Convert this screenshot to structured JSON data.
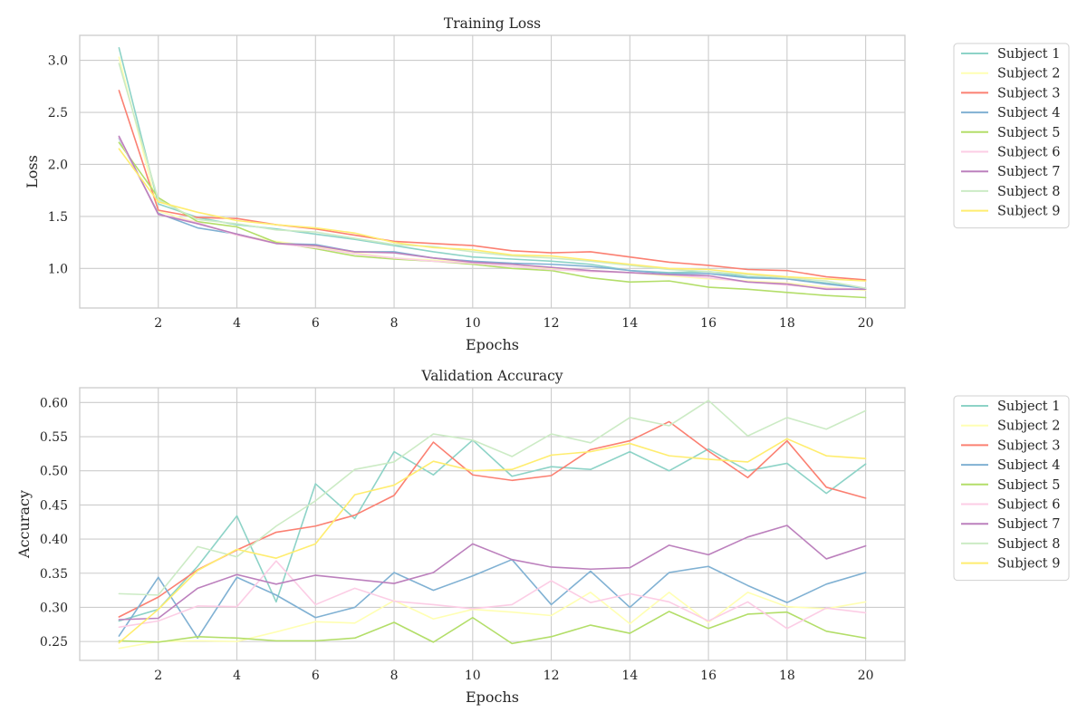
{
  "figure": {
    "xlabel": "Epochs",
    "palette": {
      "Subject 1": "#8dd3c7",
      "Subject 2": "#ffffb3",
      "Subject 3": "#fb8072",
      "Subject 4": "#80b1d3",
      "Subject 5": "#b3de69",
      "Subject 6": "#fccde5",
      "Subject 7": "#bc80bd",
      "Subject 8": "#ccebc5",
      "Subject 9": "#ffed6f"
    }
  },
  "chart_data": [
    {
      "type": "line",
      "title": "Training Loss",
      "xlabel": "Epochs",
      "ylabel": "Loss",
      "x": [
        1,
        2,
        3,
        4,
        5,
        6,
        7,
        8,
        9,
        10,
        11,
        12,
        13,
        14,
        15,
        16,
        17,
        18,
        19,
        20
      ],
      "xlim": [
        0.0,
        21.0
      ],
      "ylim": [
        0.62,
        3.24
      ],
      "xticks": [
        2,
        4,
        6,
        8,
        10,
        12,
        14,
        16,
        18,
        20
      ],
      "yticks": [
        1.0,
        1.5,
        2.0,
        2.5,
        3.0
      ],
      "ytick_labels": [
        "1.0",
        "1.5",
        "2.0",
        "2.5",
        "3.0"
      ],
      "grid": true,
      "legend": "outside-top-right",
      "series": [
        {
          "name": "Subject 1",
          "values": [
            3.12,
            1.62,
            1.49,
            1.42,
            1.38,
            1.33,
            1.28,
            1.22,
            1.16,
            1.11,
            1.09,
            1.07,
            1.04,
            0.98,
            0.96,
            0.97,
            0.92,
            0.9,
            0.86,
            0.81
          ]
        },
        {
          "name": "Subject 2",
          "values": [
            3.03,
            1.55,
            1.44,
            1.32,
            1.26,
            1.21,
            1.15,
            1.1,
            1.08,
            1.06,
            1.04,
            1.0,
            0.98,
            0.96,
            0.93,
            0.9,
            0.88,
            0.86,
            0.82,
            0.79
          ]
        },
        {
          "name": "Subject 3",
          "values": [
            2.71,
            1.56,
            1.49,
            1.48,
            1.42,
            1.38,
            1.32,
            1.26,
            1.24,
            1.22,
            1.17,
            1.15,
            1.16,
            1.11,
            1.06,
            1.03,
            0.99,
            0.98,
            0.92,
            0.89
          ]
        },
        {
          "name": "Subject 4",
          "values": [
            2.25,
            1.53,
            1.39,
            1.33,
            1.24,
            1.23,
            1.16,
            1.16,
            1.1,
            1.07,
            1.05,
            1.04,
            1.02,
            0.98,
            0.95,
            0.95,
            0.91,
            0.9,
            0.85,
            0.81
          ]
        },
        {
          "name": "Subject 5",
          "values": [
            2.21,
            1.68,
            1.45,
            1.4,
            1.25,
            1.19,
            1.12,
            1.09,
            1.07,
            1.04,
            1.0,
            0.98,
            0.91,
            0.87,
            0.88,
            0.82,
            0.8,
            0.77,
            0.74,
            0.72
          ]
        },
        {
          "name": "Subject 6",
          "values": [
            2.26,
            1.52,
            1.44,
            1.32,
            1.24,
            1.2,
            1.14,
            1.1,
            1.07,
            1.05,
            1.02,
            0.99,
            0.97,
            0.96,
            0.94,
            0.91,
            0.87,
            0.84,
            0.81,
            0.8
          ]
        },
        {
          "name": "Subject 7",
          "values": [
            2.27,
            1.52,
            1.43,
            1.33,
            1.24,
            1.22,
            1.16,
            1.15,
            1.1,
            1.06,
            1.04,
            1.01,
            0.98,
            0.96,
            0.94,
            0.93,
            0.87,
            0.85,
            0.8,
            0.8
          ]
        },
        {
          "name": "Subject 8",
          "values": [
            2.97,
            1.66,
            1.47,
            1.43,
            1.37,
            1.35,
            1.29,
            1.23,
            1.21,
            1.16,
            1.12,
            1.1,
            1.07,
            1.03,
            0.99,
            0.97,
            0.94,
            0.91,
            0.88,
            0.81
          ]
        },
        {
          "name": "Subject 9",
          "values": [
            2.15,
            1.64,
            1.54,
            1.46,
            1.42,
            1.39,
            1.34,
            1.25,
            1.2,
            1.18,
            1.13,
            1.12,
            1.08,
            1.04,
            1.0,
            0.99,
            0.95,
            0.92,
            0.9,
            0.88
          ]
        }
      ]
    },
    {
      "type": "line",
      "title": "Validation Accuracy",
      "xlabel": "Epochs",
      "ylabel": "Accuracy",
      "x": [
        1,
        2,
        3,
        4,
        5,
        6,
        7,
        8,
        9,
        10,
        11,
        12,
        13,
        14,
        15,
        16,
        17,
        18,
        19,
        20
      ],
      "xlim": [
        0.0,
        21.0
      ],
      "ylim": [
        0.2223,
        0.6217
      ],
      "xticks": [
        2,
        4,
        6,
        8,
        10,
        12,
        14,
        16,
        18,
        20
      ],
      "yticks": [
        0.25,
        0.3,
        0.35,
        0.4,
        0.45,
        0.5,
        0.55,
        0.6
      ],
      "ytick_labels": [
        "0.25",
        "0.30",
        "0.35",
        "0.40",
        "0.45",
        "0.50",
        "0.55",
        "0.60"
      ],
      "grid": true,
      "legend": "outside-top-right",
      "series": [
        {
          "name": "Subject 1",
          "values": [
            0.28,
            0.297,
            0.36,
            0.434,
            0.308,
            0.481,
            0.43,
            0.528,
            0.494,
            0.545,
            0.492,
            0.506,
            0.502,
            0.528,
            0.5,
            0.532,
            0.5,
            0.511,
            0.467,
            0.51
          ]
        },
        {
          "name": "Subject 2",
          "values": [
            0.24,
            0.25,
            0.251,
            0.25,
            0.264,
            0.279,
            0.277,
            0.31,
            0.283,
            0.297,
            0.293,
            0.288,
            0.322,
            0.276,
            0.322,
            0.278,
            0.322,
            0.301,
            0.298,
            0.308
          ]
        },
        {
          "name": "Subject 3",
          "values": [
            0.286,
            0.315,
            0.355,
            0.384,
            0.41,
            0.419,
            0.435,
            0.464,
            0.542,
            0.494,
            0.486,
            0.493,
            0.531,
            0.544,
            0.572,
            0.529,
            0.49,
            0.544,
            0.476,
            0.46
          ]
        },
        {
          "name": "Subject 4",
          "values": [
            0.258,
            0.344,
            0.255,
            0.344,
            0.318,
            0.285,
            0.3,
            0.351,
            0.325,
            0.346,
            0.37,
            0.304,
            0.353,
            0.3,
            0.351,
            0.36,
            0.332,
            0.307,
            0.334,
            0.351
          ]
        },
        {
          "name": "Subject 5",
          "values": [
            0.251,
            0.249,
            0.257,
            0.255,
            0.251,
            0.251,
            0.255,
            0.278,
            0.249,
            0.285,
            0.247,
            0.257,
            0.274,
            0.262,
            0.294,
            0.269,
            0.29,
            0.293,
            0.265,
            0.255
          ]
        },
        {
          "name": "Subject 6",
          "values": [
            0.271,
            0.28,
            0.302,
            0.301,
            0.368,
            0.304,
            0.328,
            0.309,
            0.304,
            0.298,
            0.304,
            0.339,
            0.307,
            0.32,
            0.308,
            0.28,
            0.308,
            0.269,
            0.299,
            0.292
          ]
        },
        {
          "name": "Subject 7",
          "values": [
            0.282,
            0.284,
            0.328,
            0.348,
            0.334,
            0.347,
            0.341,
            0.335,
            0.351,
            0.393,
            0.37,
            0.359,
            0.356,
            0.358,
            0.391,
            0.377,
            0.403,
            0.42,
            0.371,
            0.39
          ]
        },
        {
          "name": "Subject 8",
          "values": [
            0.32,
            0.318,
            0.389,
            0.374,
            0.419,
            0.456,
            0.502,
            0.513,
            0.554,
            0.545,
            0.521,
            0.554,
            0.541,
            0.578,
            0.566,
            0.603,
            0.551,
            0.578,
            0.561,
            0.588
          ]
        },
        {
          "name": "Subject 9",
          "values": [
            0.248,
            0.297,
            0.354,
            0.385,
            0.372,
            0.393,
            0.465,
            0.479,
            0.514,
            0.5,
            0.502,
            0.523,
            0.528,
            0.54,
            0.522,
            0.517,
            0.513,
            0.547,
            0.522,
            0.518
          ]
        }
      ]
    }
  ]
}
